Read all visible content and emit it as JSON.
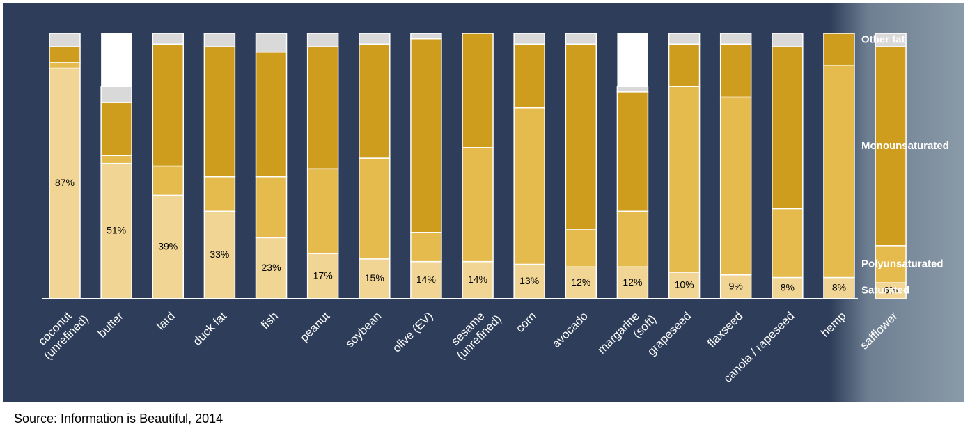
{
  "chart_data": {
    "type": "stacked-bar",
    "categories": [
      "coconut\n(unrefined)",
      "butter",
      "lard",
      "duck fat",
      "fish",
      "peanut",
      "soybean",
      "olive (EV)",
      "sesame\n(unrefined)",
      "corn",
      "avocado",
      "margarine\n(soft)",
      "grapeseed",
      "flaxseed",
      "canola / rapeseed",
      "hemp",
      "safflower"
    ],
    "series": [
      {
        "name": "Saturated",
        "color": "#f0d595",
        "values": [
          87,
          51,
          39,
          33,
          23,
          17,
          15,
          14,
          14,
          13,
          12,
          12,
          10,
          9,
          8,
          8,
          6
        ],
        "value_labels": [
          "87%",
          "51%",
          "39%",
          "33%",
          "23%",
          "17%",
          "15%",
          "14%",
          "14%",
          "13%",
          "12%",
          "12%",
          "10%",
          "9%",
          "8%",
          "8%",
          "6%"
        ]
      },
      {
        "name": "Polyunsaturated",
        "color": "#e5bb4d",
        "values": [
          2,
          3,
          11,
          13,
          23,
          32,
          38,
          11,
          43,
          59,
          14,
          21,
          70,
          67,
          26,
          80,
          14
        ]
      },
      {
        "name": "Monounsaturated",
        "color": "#cf9d1e",
        "values": [
          6,
          20,
          46,
          49,
          47,
          46,
          43,
          73,
          43,
          24,
          70,
          45,
          16,
          20,
          61,
          12,
          75
        ]
      },
      {
        "name": "Other fat",
        "color": "#d9d9d9",
        "values": [
          5,
          6,
          4,
          5,
          7,
          5,
          4,
          2,
          0,
          4,
          4,
          2,
          4,
          4,
          5,
          0,
          5
        ]
      }
    ],
    "ylim": [
      0,
      100
    ],
    "source": "Source: Information is Beautiful, 2014"
  }
}
